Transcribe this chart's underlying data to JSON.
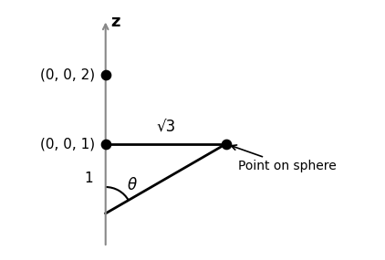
{
  "bg_color": "#ffffff",
  "line_color": "#000000",
  "axis_color": "#888888",
  "z_axis_label": "z",
  "point_002_label": "(0, 0, 2)",
  "point_001_label": "(0, 0, 1)",
  "sqrt3_label": "√3",
  "dist1_label": "1",
  "theta_label": "θ",
  "sphere_label": "Point on sphere",
  "figsize": [
    4.22,
    2.85
  ],
  "dpi": 100
}
